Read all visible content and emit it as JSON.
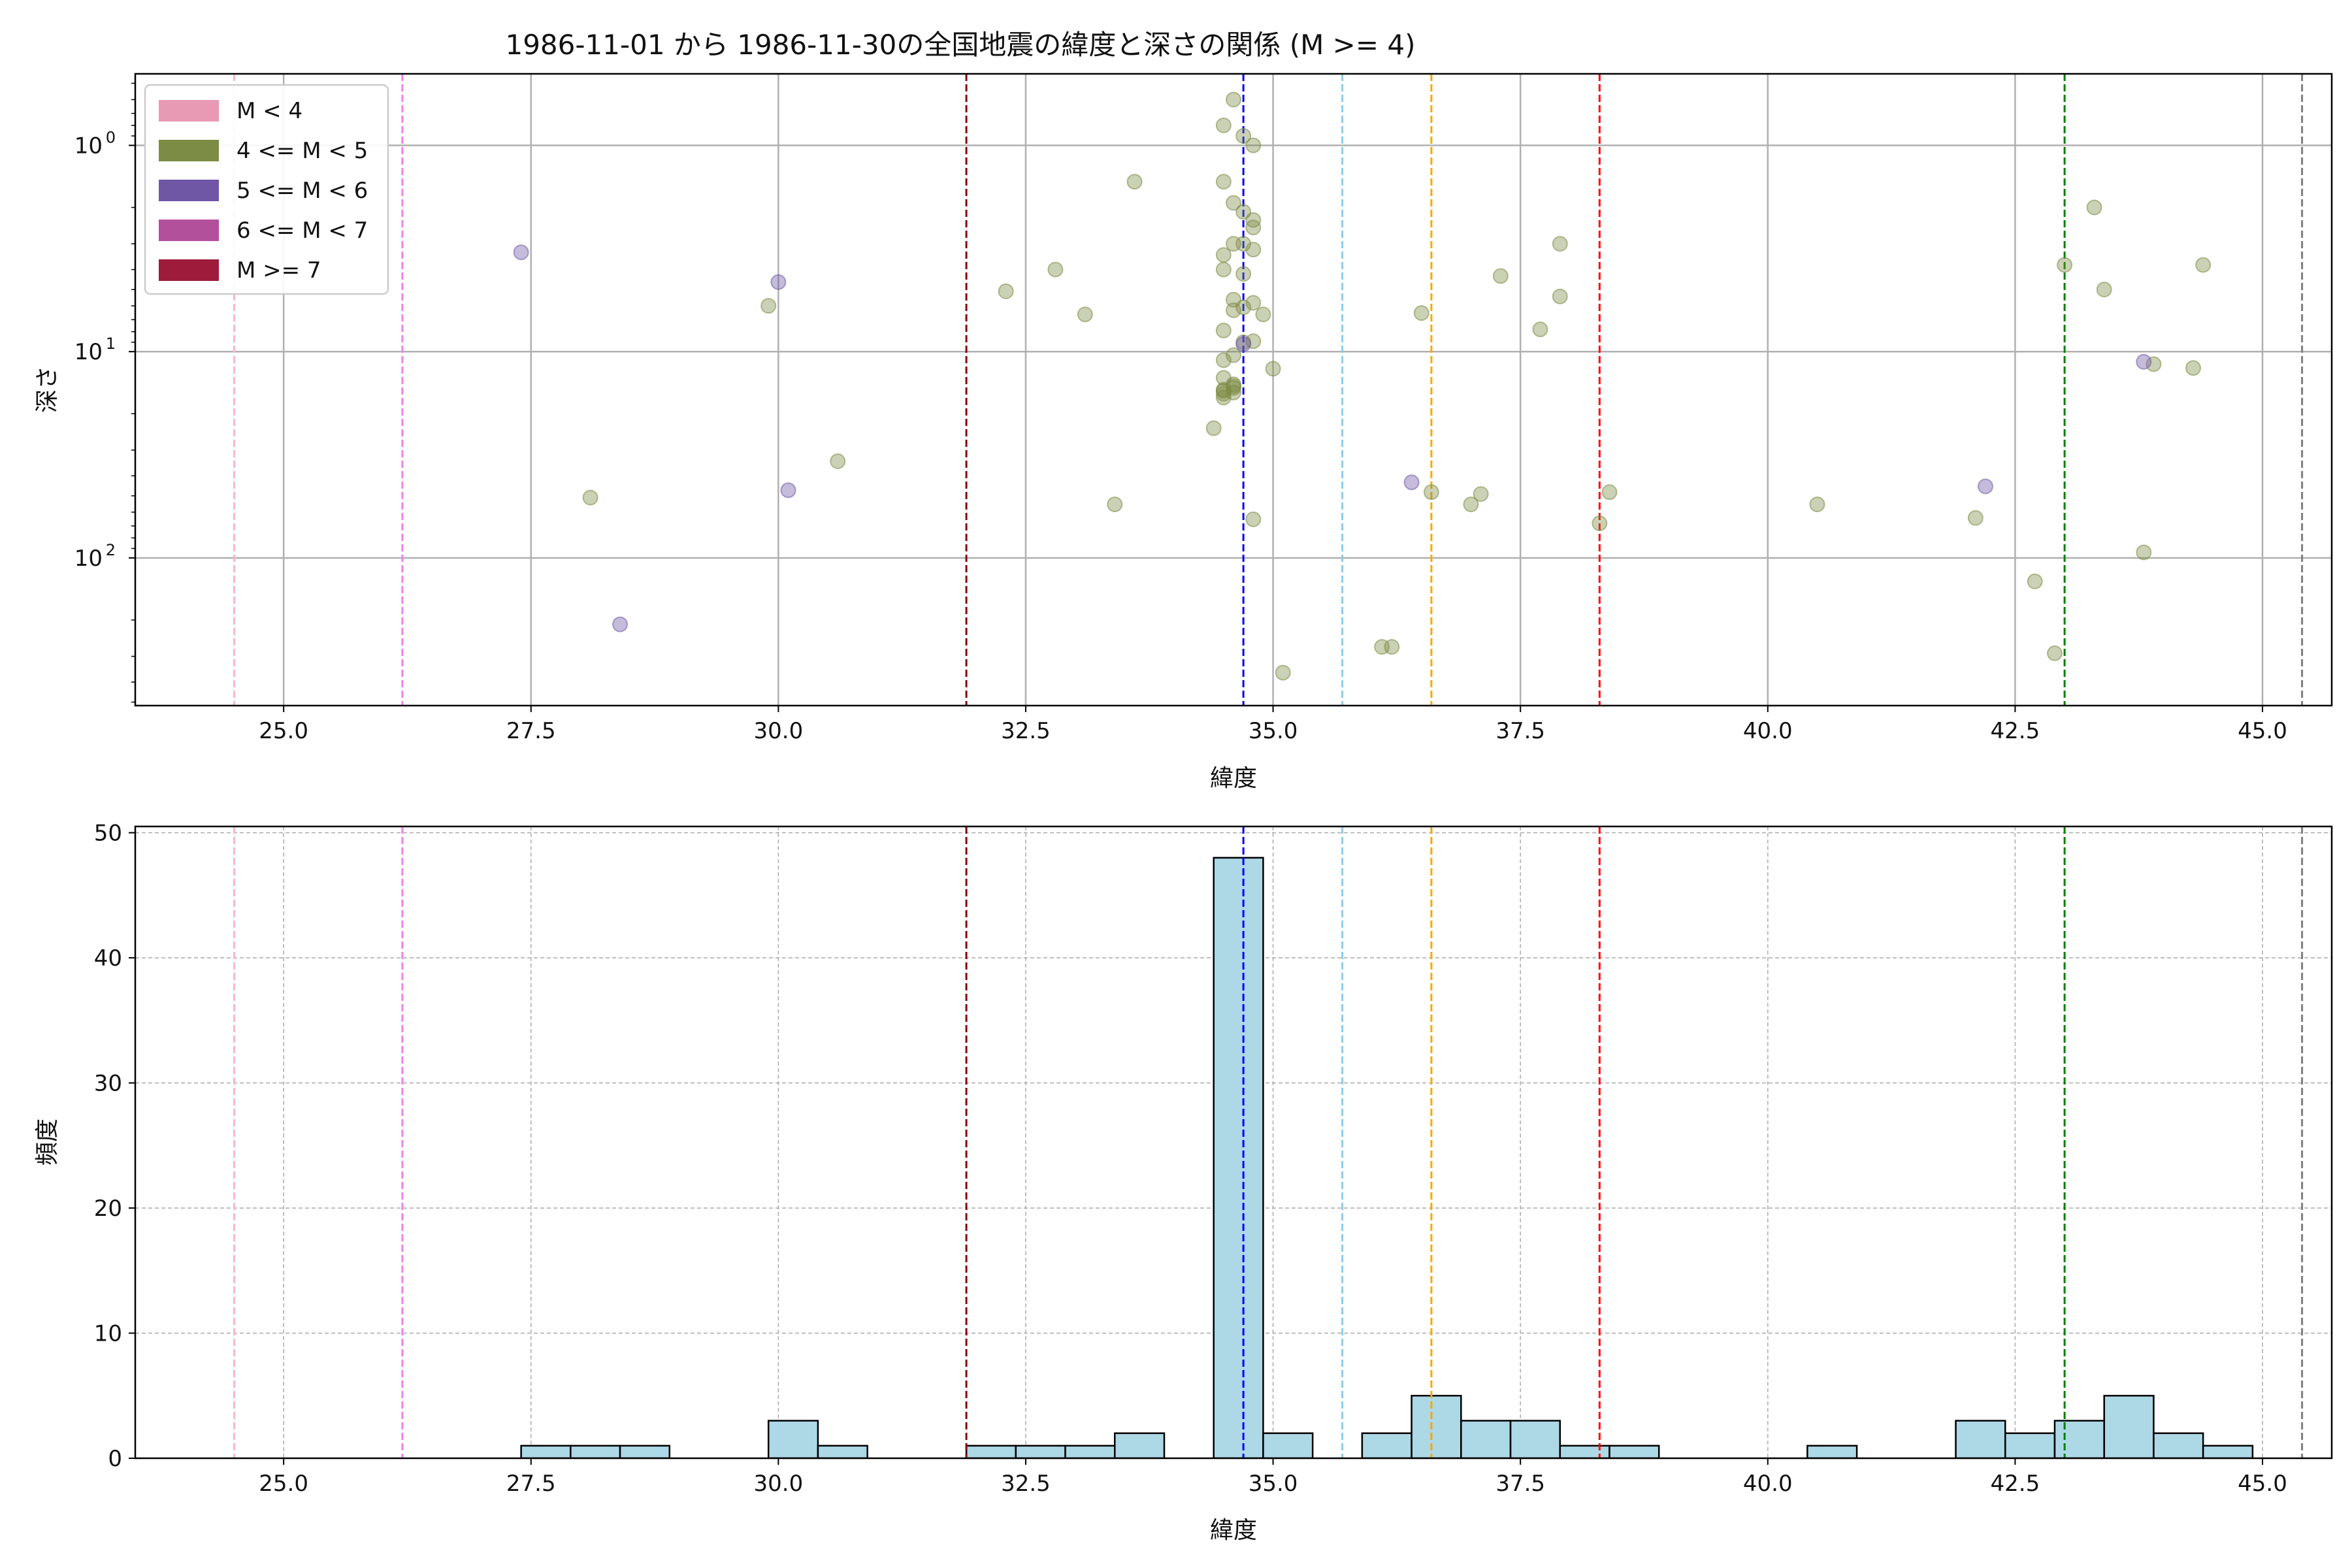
{
  "figure": {
    "title": "1986-11-01 から 1986-11-30の全国地震の緯度と深さの関係 (M >= 4)"
  },
  "legend": {
    "items": [
      {
        "label": "M < 4",
        "color": "#e89ab4"
      },
      {
        "label": "4 <= M < 5",
        "color": "#7d8c45"
      },
      {
        "label": "5 <= M < 6",
        "color": "#6f57a6"
      },
      {
        "label": "6 <= M < 7",
        "color": "#b3509b"
      },
      {
        "label": "M >= 7",
        "color": "#9e1b3c"
      }
    ]
  },
  "reference_lines": [
    {
      "x": 24.5,
      "color": "#f7b6d2"
    },
    {
      "x": 26.2,
      "color": "#ee82ee"
    },
    {
      "x": 31.9,
      "color": "#8b0000"
    },
    {
      "x": 34.7,
      "color": "#0000ff"
    },
    {
      "x": 35.7,
      "color": "#87ceeb"
    },
    {
      "x": 36.6,
      "color": "#ffa500"
    },
    {
      "x": 38.3,
      "color": "#ff0000"
    },
    {
      "x": 43.0,
      "color": "#008000"
    },
    {
      "x": 45.4,
      "color": "#808080"
    }
  ],
  "chart_data": [
    {
      "type": "scatter",
      "title": "1986-11-01 から 1986-11-30の全国地震の緯度と深さの関係 (M >= 4)",
      "xlabel": "緯度",
      "ylabel": "深さ",
      "xlim": [
        23.5,
        45.7
      ],
      "ylim": [
        520,
        0.45
      ],
      "yscale": "log-inverted",
      "grid": true,
      "legend_position": "top-left",
      "xticks": [
        "25.0",
        "27.5",
        "30.0",
        "32.5",
        "35.0",
        "37.5",
        "40.0",
        "42.5",
        "45.0"
      ],
      "yticks": [
        {
          "value": 1,
          "exp": "0"
        },
        {
          "value": 10,
          "exp": "1"
        },
        {
          "value": 100,
          "exp": "2"
        }
      ],
      "series": [
        {
          "name": "4 <= M < 5",
          "color": "#7d8c45",
          "points": [
            [
              34.6,
              0.6
            ],
            [
              34.5,
              0.8
            ],
            [
              34.7,
              0.9
            ],
            [
              34.8,
              1.0
            ],
            [
              33.6,
              1.5
            ],
            [
              34.5,
              1.5
            ],
            [
              34.6,
              1.9
            ],
            [
              34.7,
              2.1
            ],
            [
              34.8,
              2.3
            ],
            [
              34.8,
              2.5
            ],
            [
              34.7,
              3.0
            ],
            [
              34.6,
              3.0
            ],
            [
              34.8,
              3.2
            ],
            [
              34.5,
              3.4
            ],
            [
              34.7,
              4.2
            ],
            [
              34.5,
              4.0
            ],
            [
              32.3,
              5.1
            ],
            [
              32.8,
              4.0
            ],
            [
              33.1,
              6.6
            ],
            [
              34.6,
              5.6
            ],
            [
              34.7,
              6.1
            ],
            [
              34.8,
              5.8
            ],
            [
              34.9,
              6.6
            ],
            [
              34.6,
              6.3
            ],
            [
              34.5,
              7.9
            ],
            [
              34.7,
              9.0
            ],
            [
              34.8,
              8.9
            ],
            [
              34.6,
              10.4
            ],
            [
              34.5,
              11.0
            ],
            [
              35.0,
              12.1
            ],
            [
              34.5,
              13.4
            ],
            [
              34.6,
              14.4
            ],
            [
              34.5,
              15.3
            ],
            [
              34.6,
              15.8
            ],
            [
              34.5,
              16.7
            ],
            [
              34.6,
              15.0
            ],
            [
              34.6,
              14.7
            ],
            [
              34.5,
              16.0
            ],
            [
              34.5,
              15.5
            ],
            [
              34.4,
              23.5
            ],
            [
              29.9,
              6.0
            ],
            [
              28.1,
              51.0
            ],
            [
              30.6,
              34.0
            ],
            [
              33.4,
              55.0
            ],
            [
              34.8,
              65.0
            ],
            [
              35.1,
              360.0
            ],
            [
              36.5,
              6.5
            ],
            [
              36.6,
              48.0
            ],
            [
              37.0,
              55.0
            ],
            [
              37.1,
              49.0
            ],
            [
              37.3,
              4.3
            ],
            [
              37.7,
              7.8
            ],
            [
              37.9,
              5.4
            ],
            [
              37.9,
              3.0
            ],
            [
              36.1,
              270.0
            ],
            [
              36.2,
              270.0
            ],
            [
              38.3,
              68.0
            ],
            [
              38.4,
              48.0
            ],
            [
              40.5,
              55.0
            ],
            [
              42.1,
              64.0
            ],
            [
              42.7,
              130.0
            ],
            [
              42.9,
              290.0
            ],
            [
              43.0,
              3.8
            ],
            [
              43.3,
              2.0
            ],
            [
              43.4,
              5.0
            ],
            [
              43.8,
              94.0
            ],
            [
              43.9,
              11.5
            ],
            [
              44.3,
              12.0
            ],
            [
              44.4,
              3.8
            ]
          ]
        },
        {
          "name": "5 <= M < 6",
          "color": "#6f57a6",
          "points": [
            [
              27.4,
              3.3
            ],
            [
              30.0,
              4.6
            ],
            [
              30.1,
              47.0
            ],
            [
              28.4,
              210.0
            ],
            [
              36.4,
              43.0
            ],
            [
              42.2,
              45.0
            ],
            [
              43.8,
              11.2
            ],
            [
              34.7,
              9.2
            ]
          ]
        }
      ]
    },
    {
      "type": "bar",
      "title": "",
      "xlabel": "緯度",
      "ylabel": "頻度",
      "xlim": [
        23.5,
        45.7
      ],
      "ylim": [
        0,
        50.5
      ],
      "grid": true,
      "xticks": [
        "25.0",
        "27.5",
        "30.0",
        "32.5",
        "35.0",
        "37.5",
        "40.0",
        "42.5",
        "45.0"
      ],
      "yticks": [
        "0",
        "10",
        "20",
        "30",
        "40",
        "50"
      ],
      "bar_color": "#add8e6",
      "bin_width": 0.5,
      "bins": [
        {
          "start": 27.4,
          "count": 1
        },
        {
          "start": 27.9,
          "count": 1
        },
        {
          "start": 28.4,
          "count": 1
        },
        {
          "start": 29.9,
          "count": 3
        },
        {
          "start": 30.4,
          "count": 1
        },
        {
          "start": 31.9,
          "count": 1
        },
        {
          "start": 32.4,
          "count": 1
        },
        {
          "start": 32.9,
          "count": 1
        },
        {
          "start": 33.4,
          "count": 2
        },
        {
          "start": 34.4,
          "count": 48
        },
        {
          "start": 34.9,
          "count": 2
        },
        {
          "start": 35.9,
          "count": 2
        },
        {
          "start": 36.4,
          "count": 5
        },
        {
          "start": 36.9,
          "count": 3
        },
        {
          "start": 37.4,
          "count": 3
        },
        {
          "start": 37.9,
          "count": 1
        },
        {
          "start": 38.4,
          "count": 1
        },
        {
          "start": 40.4,
          "count": 1
        },
        {
          "start": 41.9,
          "count": 3
        },
        {
          "start": 42.4,
          "count": 2
        },
        {
          "start": 42.9,
          "count": 3
        },
        {
          "start": 43.4,
          "count": 5
        },
        {
          "start": 43.9,
          "count": 2
        },
        {
          "start": 44.4,
          "count": 1
        }
      ]
    }
  ]
}
